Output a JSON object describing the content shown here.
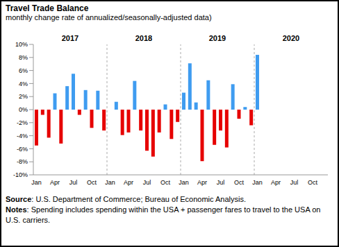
{
  "chart_data": {
    "type": "bar",
    "title": "Travel Trade Balance",
    "subtitle": "monthly change rate of annualized/seasonally-adjusted data)",
    "annotations": [
      "2017",
      "2018",
      "2019",
      "2020"
    ],
    "categories": [
      "Jan",
      null,
      null,
      "Apr",
      null,
      null,
      "Jul",
      null,
      null,
      "Oct",
      null,
      null,
      "Jan",
      null,
      null,
      "Apr",
      null,
      null,
      "Jul",
      null,
      null,
      "Oct",
      null,
      null,
      "Jan",
      null,
      null,
      "Apr",
      null,
      null,
      "Jul",
      null,
      null,
      "Oct",
      null,
      null,
      "Jan",
      null,
      null,
      "Apr",
      null,
      null,
      "Jul",
      null,
      null,
      "Oct",
      null,
      null
    ],
    "values": [
      -5.5,
      -0.8,
      -4.3,
      2.5,
      -5.2,
      3.6,
      5.5,
      -0.8,
      3.0,
      -2.8,
      2.9,
      -3.2,
      0,
      1.2,
      -3.9,
      -3.5,
      4.4,
      -3.2,
      -6.3,
      -7.2,
      -3.5,
      0.8,
      -4.5,
      -1.9,
      2.6,
      7.1,
      1.1,
      -7.9,
      4.5,
      -5.4,
      -3.2,
      -5.8,
      3.9,
      -1.4,
      0.4,
      -2.4,
      8.4,
      null,
      null,
      null,
      null,
      null,
      null,
      null,
      null,
      null,
      null,
      null
    ],
    "colors": [
      "#e60000",
      "#e60000",
      "#e60000",
      "#3f9cf0",
      "#e60000",
      "#3f9cf0",
      "#3f9cf0",
      "#e60000",
      "#3f9cf0",
      "#e60000",
      "#3f9cf0",
      "#e60000",
      "#3f9cf0",
      "#3f9cf0",
      "#e60000",
      "#e60000",
      "#3f9cf0",
      "#e60000",
      "#e60000",
      "#e60000",
      "#e60000",
      "#3f9cf0",
      "#e60000",
      "#e60000",
      "#3f9cf0",
      "#3f9cf0",
      "#3f9cf0",
      "#e60000",
      "#3f9cf0",
      "#e60000",
      "#e60000",
      "#e60000",
      "#3f9cf0",
      "#e60000",
      "#3f9cf0",
      "#e60000",
      "#3f9cf0",
      "#3f9cf0",
      "#3f9cf0",
      "#3f9cf0",
      "#3f9cf0",
      "#3f9cf0",
      "#3f9cf0",
      "#3f9cf0",
      "#3f9cf0",
      "#3f9cf0",
      "#3f9cf0",
      "#3f9cf0"
    ],
    "ylim": [
      -10,
      10
    ],
    "yticks": [
      {
        "value": 10,
        "label": "10%"
      },
      {
        "value": 8,
        "label": "8%"
      },
      {
        "value": 6,
        "label": "6%"
      },
      {
        "value": 4,
        "label": "4%"
      },
      {
        "value": 2,
        "label": "2%"
      },
      {
        "value": 0,
        "label": "0%"
      },
      {
        "value": -2,
        "label": "-2%"
      },
      {
        "value": -4,
        "label": "-4%"
      },
      {
        "value": -6,
        "label": "-6%"
      },
      {
        "value": -8,
        "label": "-8%"
      },
      {
        "value": -10,
        "label": "-10%"
      }
    ],
    "grid": false,
    "source": "Source: U.S. Department of Commerce; Bureau of Economic Analysis.",
    "notes": "Notes: Spending includes spending within the USA + passenger fares to travel to the USA on U.S. carriers."
  }
}
